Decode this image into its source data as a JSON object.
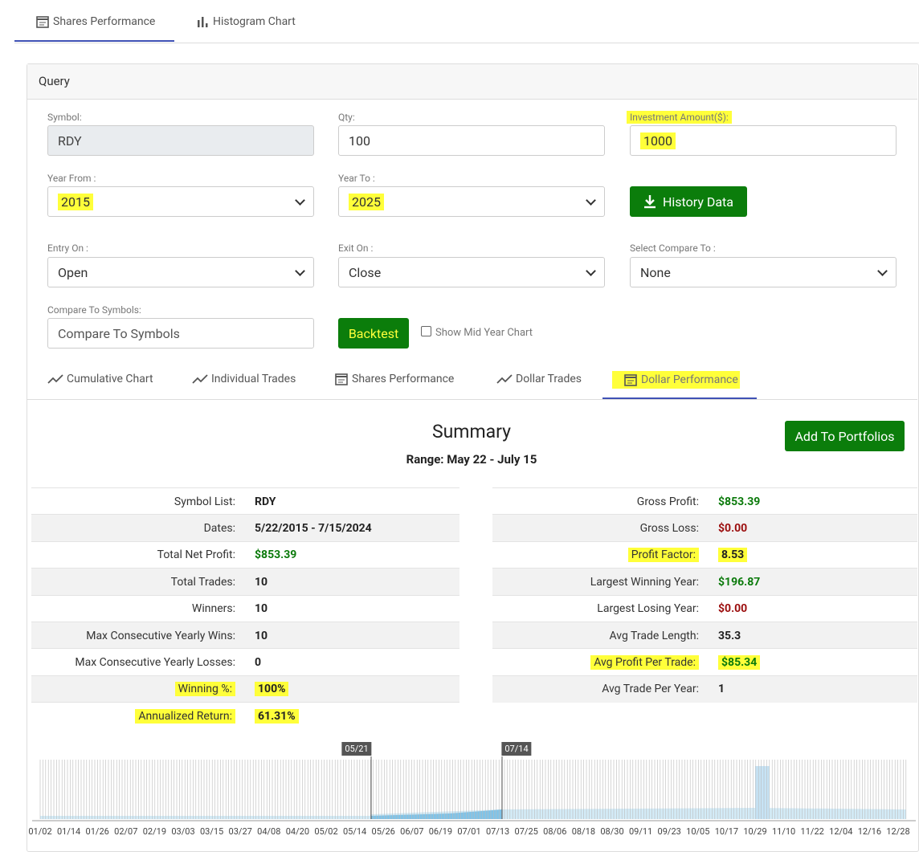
{
  "top_tabs": [
    "Shares Performance",
    "Histogram Chart"
  ],
  "query": {
    "title": "Query",
    "fields": [
      {
        "label": "Symbol:",
        "value": "RDY"
      },
      {
        "label": "Qty:",
        "value": "100"
      },
      {
        "label": "Investment Amount($):",
        "value": "1000"
      },
      {
        "label": "Year From :",
        "value": "2015"
      },
      {
        "label": "Year To :",
        "value": "2025"
      },
      {
        "label": "Entry On :",
        "value": "Open"
      },
      {
        "label": "Exit On :",
        "value": "Close"
      },
      {
        "label": "Select Compare To :",
        "value": "None"
      },
      {
        "label": "Compare To Symbols:",
        "placeholder": "Compare To Symbols"
      }
    ],
    "history_button": "History Data",
    "backtest_button": "Backtest",
    "checkbox_label": "Show Mid Year Chart"
  },
  "result_tabs": [
    "Cumulative Chart",
    "Individual Trades",
    "Shares Performance",
    "Dollar Trades",
    "Dollar Performance"
  ],
  "summary": {
    "title": "Summary",
    "range": "Range: May 22 - July 15",
    "add_button": "Add To Portfolios",
    "left": [
      {
        "label": "Symbol List:",
        "value": "RDY"
      },
      {
        "label": "Dates:",
        "value": "5/22/2015 - 7/15/2024"
      },
      {
        "label": "Total Net Profit:",
        "value": "$853.39",
        "color": "#0b7a0b"
      },
      {
        "label": "Total Trades:",
        "value": "10"
      },
      {
        "label": "Winners:",
        "value": "10"
      },
      {
        "label": "Max Consecutive Yearly Wins:",
        "value": "10"
      },
      {
        "label": "Max Consecutive Yearly Losses:",
        "value": "0"
      },
      {
        "label": "Winning %:",
        "value": "100%"
      },
      {
        "label": "Annualized Return:",
        "value": "61.31%"
      }
    ],
    "right": [
      {
        "label": "Gross Profit:",
        "value": "$853.39",
        "color": "#0b7a0b"
      },
      {
        "label": "Gross Loss:",
        "value": "$0.00",
        "color": "#9b0d0d"
      },
      {
        "label": "Profit Factor:",
        "value": "8.53"
      },
      {
        "label": "Largest Winning Year:",
        "value": "$196.87",
        "color": "#0b7a0b"
      },
      {
        "label": "Largest Losing Year:",
        "value": "$0.00",
        "color": "#9b0d0d"
      },
      {
        "label": "Avg Trade Length:",
        "value": "35.3"
      },
      {
        "label": "Avg Profit Per Trade:",
        "value": "$85.34",
        "color": "#0b7a0b"
      },
      {
        "label": "Avg Trade Per Year:",
        "value": "1"
      }
    ]
  },
  "chart": {
    "markers": [
      "05/21",
      "07/14"
    ],
    "x_labels": [
      "01/02",
      "01/14",
      "01/26",
      "02/07",
      "02/19",
      "03/03",
      "03/15",
      "03/27",
      "04/08",
      "04/20",
      "05/02",
      "05/14",
      "05/26",
      "06/07",
      "06/19",
      "07/01",
      "07/13",
      "07/25",
      "08/06",
      "08/18",
      "08/30",
      "09/11",
      "09/23",
      "10/05",
      "10/17",
      "10/29",
      "11/10",
      "11/22",
      "12/04",
      "12/16",
      "12/28"
    ]
  }
}
